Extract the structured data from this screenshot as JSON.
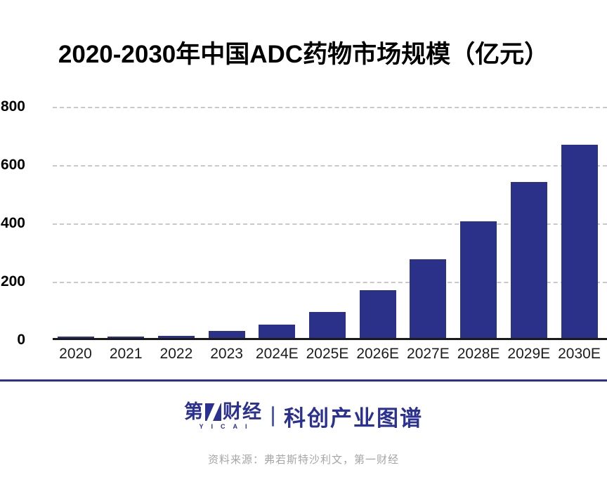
{
  "title": "2020-2030年中国ADC药物市场规模（亿元）",
  "chart_data": {
    "type": "bar",
    "title": "2020-2030年中国ADC药物市场规模（亿元）",
    "unit": "亿元",
    "categories": [
      "2020",
      "2021",
      "2022",
      "2023",
      "2024E",
      "2025E",
      "2026E",
      "2027E",
      "2028E",
      "2029E",
      "2030E"
    ],
    "values": [
      1,
      3,
      8,
      24,
      46,
      90,
      165,
      271,
      400,
      536,
      662
    ],
    "xlabel": "",
    "ylabel": "",
    "ylim": [
      0,
      800
    ],
    "yticks": [
      0,
      200,
      400,
      600,
      800
    ],
    "grid": "horizontal-dashed",
    "legend": "none",
    "bar_color": "#2b3188"
  },
  "footer": {
    "brand_prefix": "第",
    "brand_suffix": "财经",
    "brand_latin": "YICAI",
    "brand_series": "科创产业图谱",
    "source": "资料来源：弗若斯特沙利文，第一财经"
  },
  "icons": {
    "brand_mark": "yicai-stylized-one-slash"
  },
  "colors": {
    "bar": "#2b3188",
    "brand_blue": "#2b3190",
    "divider_line": "#2e3192",
    "grid_line": "#c9c9c9",
    "axis_line": "#1a1a1a",
    "title_text": "#000000",
    "tick_text": "#1c1c1c",
    "source_text": "#a5a5a5"
  }
}
